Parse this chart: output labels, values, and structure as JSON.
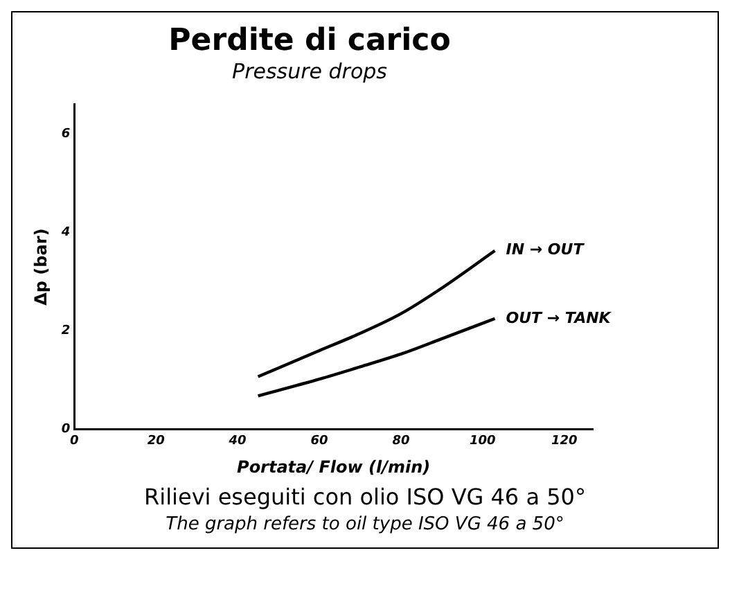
{
  "chart_data": {
    "type": "line",
    "title": "Perdite di carico",
    "subtitle": "Pressure drops",
    "xlabel": "Portata/ Flow (l/min)",
    "ylabel": "Δp (bar)",
    "annotations": [
      "Rilievi eseguiti con olio ISO VG 46 a 50°",
      "The graph refers to oil type ISO VG 46 a 50°"
    ],
    "x": [
      45,
      60,
      70,
      80,
      90,
      103
    ],
    "series": [
      {
        "name": "IN → OUT",
        "color": "#000000",
        "values": [
          1.07,
          1.6,
          1.95,
          2.35,
          2.87,
          3.63
        ]
      },
      {
        "name": "OUT → TANK",
        "color": "#000000",
        "values": [
          0.68,
          1.02,
          1.27,
          1.53,
          1.84,
          2.25
        ]
      }
    ],
    "xlim": [
      0,
      127
    ],
    "ylim": [
      0,
      6.6
    ],
    "xticks": [
      0,
      20,
      40,
      60,
      80,
      100,
      120
    ],
    "yticks": [
      0,
      2,
      4,
      6
    ],
    "grid": false,
    "legend": false,
    "marker": "none",
    "line_style": "solid"
  }
}
